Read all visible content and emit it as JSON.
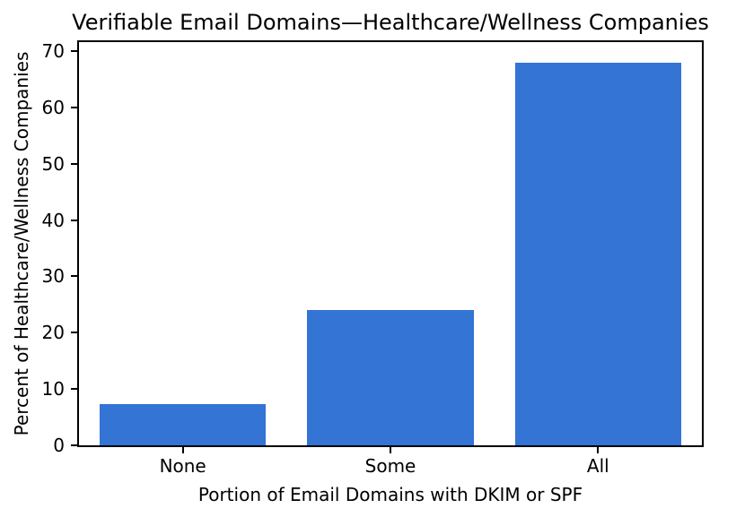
{
  "chart_data": {
    "type": "bar",
    "title": "Verifiable Email Domains—Healthcare/Wellness Companies",
    "xlabel": "Portion of Email Domains with DKIM or SPF",
    "ylabel": "Percent of Healthcare/Wellness Companies",
    "categories": [
      "None",
      "Some",
      "All"
    ],
    "values": [
      7.4,
      24.1,
      68.0
    ],
    "yticks": [
      0,
      10,
      20,
      30,
      40,
      50,
      60,
      70
    ],
    "ylim": [
      0,
      71.6
    ],
    "bar_color": "#3374d4",
    "bar_width_fraction": 0.8,
    "grid": false,
    "legend": "none",
    "spine_color": "#000000",
    "text_color": "#000000",
    "background_color": "#ffffff"
  }
}
